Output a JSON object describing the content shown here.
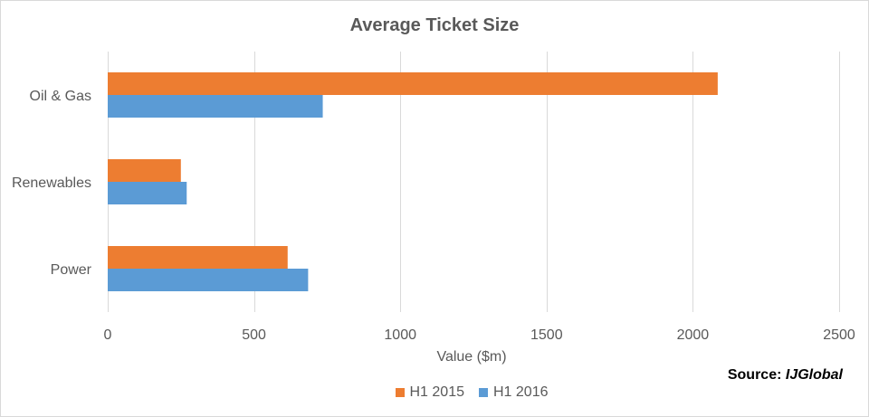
{
  "chart_data": {
    "type": "bar",
    "orientation": "horizontal",
    "title": "Average Ticket Size",
    "xlabel": "Value ($m)",
    "ylabel": "",
    "xlim": [
      0,
      2500
    ],
    "xticks": [
      0,
      500,
      1000,
      1500,
      2000,
      2500
    ],
    "categories": [
      "Oil & Gas",
      "Renewables",
      "Power"
    ],
    "series": [
      {
        "name": "H1 2015",
        "color": "#ED7D31",
        "values": [
          2085,
          250,
          615
        ]
      },
      {
        "name": "H1 2016",
        "color": "#5B9BD5",
        "values": [
          735,
          270,
          685
        ]
      }
    ],
    "grid": true,
    "legend": "bottom"
  },
  "source": {
    "label": "Source:",
    "brand": "IJGlobal"
  }
}
